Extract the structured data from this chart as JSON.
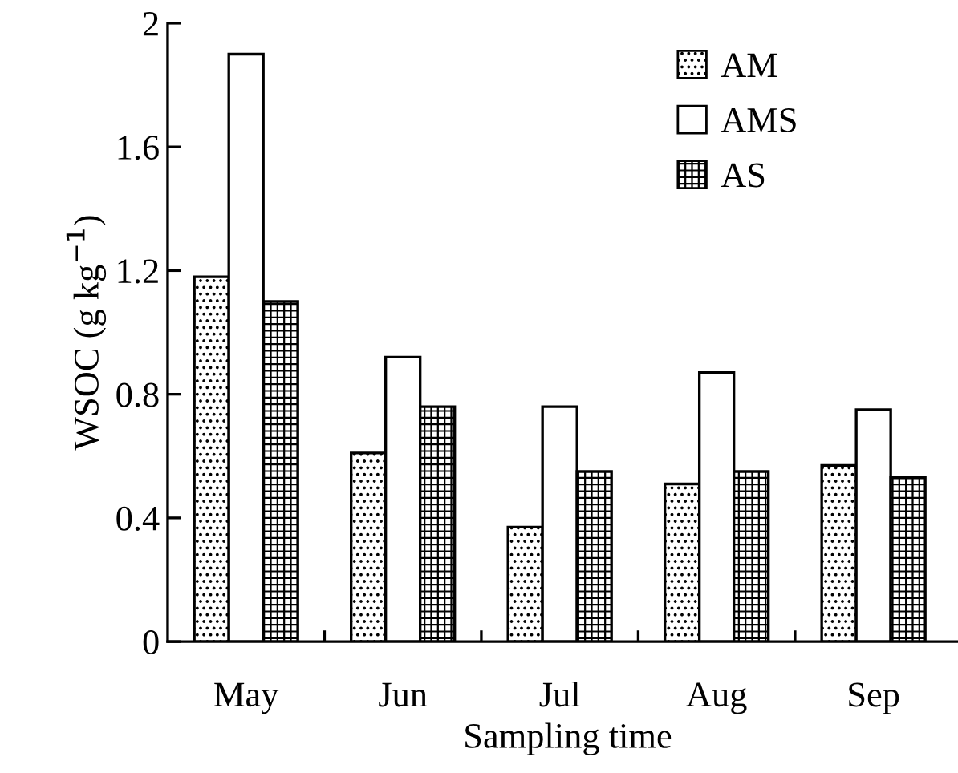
{
  "chart_data": {
    "type": "bar",
    "xlabel": "Sampling time",
    "ylabel": "WSOC (g kg$^{−1}$)",
    "categories": [
      "May",
      "Jun",
      "Jul",
      "Aug",
      "Sep"
    ],
    "series": [
      {
        "name": "AM",
        "color": "#000000",
        "values": [
          1.18,
          0.61,
          0.37,
          0.51,
          0.57
        ]
      },
      {
        "name": "AMS",
        "color": "#ffffff",
        "values": [
          1.9,
          0.92,
          0.76,
          0.87,
          0.75
        ]
      },
      {
        "name": "AS",
        "color": "#000000",
        "values": [
          1.1,
          0.76,
          0.55,
          0.55,
          0.53
        ]
      }
    ],
    "ylim": [
      0,
      2
    ],
    "yticks": [
      0,
      0.4,
      0.8,
      1.2,
      1.6,
      2
    ],
    "legend": "top right",
    "grid": false
  }
}
